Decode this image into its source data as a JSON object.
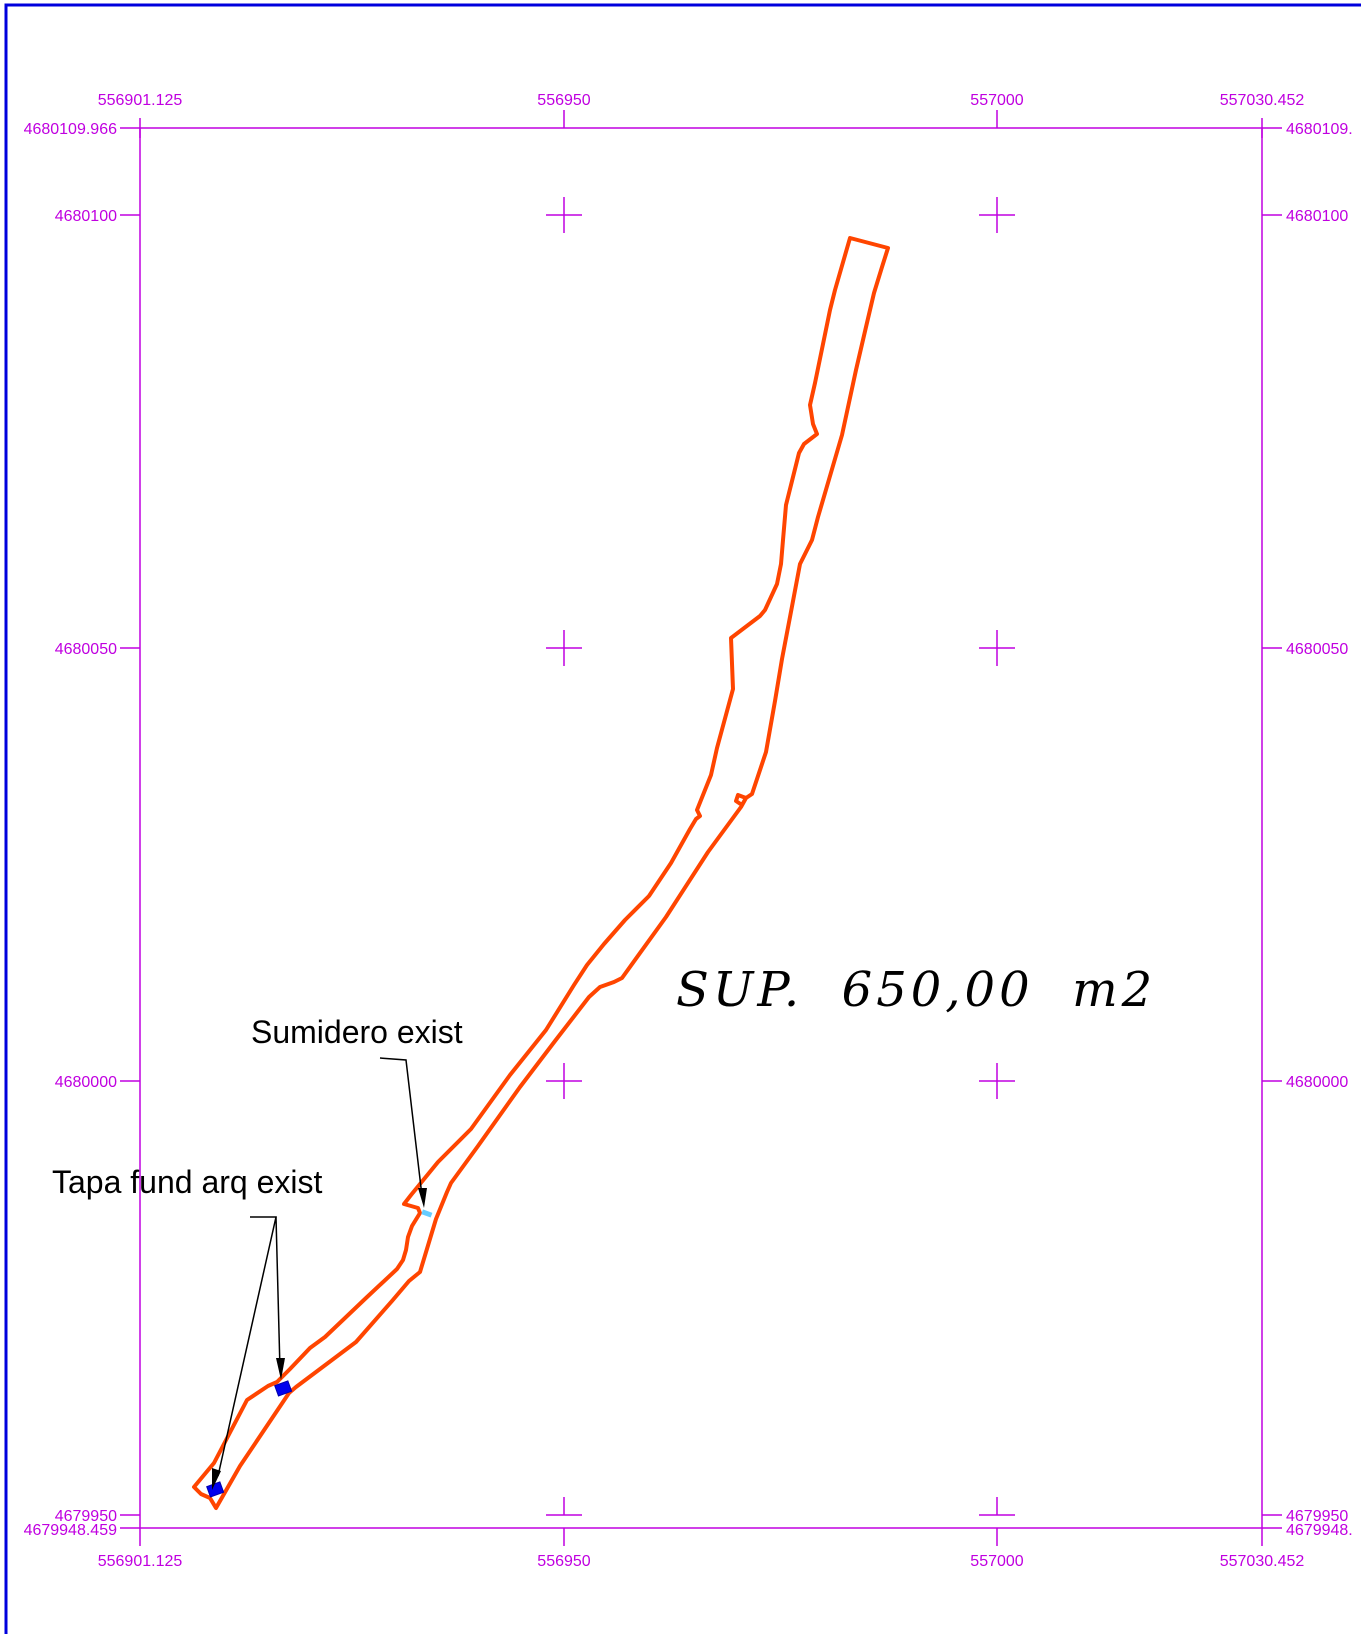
{
  "map": {
    "x_ticks": {
      "top": [
        "556901.125",
        "556950",
        "557000",
        "557030.452"
      ],
      "bottom": [
        "556901.125",
        "556950",
        "557000",
        "557030.452"
      ]
    },
    "y_ticks": {
      "left": [
        "4680109.966",
        "4680100",
        "4680050",
        "4680000",
        "4679950",
        "4679948.459"
      ],
      "right": [
        "4680109.",
        "4680100",
        "4680050",
        "4680000",
        "4679950",
        "4679948."
      ]
    },
    "x_range": [
      556901.125,
      557030.452
    ],
    "y_range": [
      4679948.459,
      4680109.966
    ],
    "grid": "cross-marks",
    "area_label": "SUP.  650,00  m2",
    "annotations": {
      "sumidero": "Sumidero exist",
      "tapa": "Tapa fund arq exist"
    },
    "colors": {
      "frame": "#0000dd",
      "grid": "#c000e0",
      "parcel": "#ff4500",
      "manhole": "#0000ee",
      "sink": "#66ccff"
    }
  }
}
